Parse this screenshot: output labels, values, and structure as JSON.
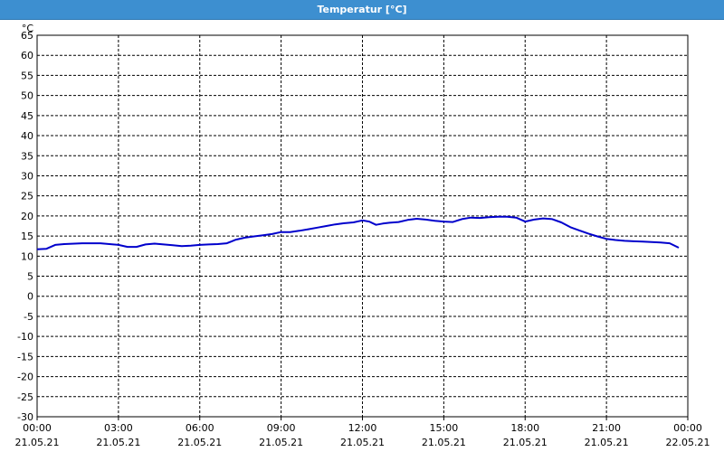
{
  "title": "Temperatur [°C]",
  "chart_data": {
    "type": "line",
    "title": "Temperatur [°C]",
    "y_unit_label": "°C",
    "ylim": [
      -30,
      65
    ],
    "yticks": [
      65,
      60,
      55,
      50,
      45,
      40,
      35,
      30,
      25,
      20,
      15,
      10,
      5,
      0,
      -5,
      -10,
      -15,
      -20,
      -25,
      -30
    ],
    "xlim_hours": [
      0,
      24
    ],
    "xticks": [
      {
        "time": "00:00",
        "date": "21.05.21"
      },
      {
        "time": "03:00",
        "date": "21.05.21"
      },
      {
        "time": "06:00",
        "date": "21.05.21"
      },
      {
        "time": "09:00",
        "date": "21.05.21"
      },
      {
        "time": "12:00",
        "date": "21.05.21"
      },
      {
        "time": "15:00",
        "date": "21.05.21"
      },
      {
        "time": "18:00",
        "date": "21.05.21"
      },
      {
        "time": "21:00",
        "date": "21.05.21"
      },
      {
        "time": "00:00",
        "date": "22.05.21"
      }
    ],
    "grid": true,
    "line_color": "#0000cc",
    "series": [
      {
        "x": [
          "21.05.21 00:00",
          "21.05.21 00:20",
          "21.05.21 00:40",
          "21.05.21 01:00",
          "21.05.21 01:40",
          "21.05.21 02:20",
          "21.05.21 03:00",
          "21.05.21 03:20",
          "21.05.21 03:40",
          "21.05.21 04:00",
          "21.05.21 04:20",
          "21.05.21 04:40",
          "21.05.21 05:00",
          "21.05.21 05:20",
          "21.05.21 05:40",
          "21.05.21 06:00",
          "21.05.21 06:20",
          "21.05.21 06:40",
          "21.05.21 07:00",
          "21.05.21 07:20",
          "21.05.21 07:40",
          "21.05.21 08:00",
          "21.05.21 08:20",
          "21.05.21 08:40",
          "21.05.21 09:00",
          "21.05.21 09:20",
          "21.05.21 09:40",
          "21.05.21 10:00",
          "21.05.21 10:20",
          "21.05.21 10:40",
          "21.05.21 11:00",
          "21.05.21 11:20",
          "21.05.21 11:40",
          "21.05.21 12:00",
          "21.05.21 12:15",
          "21.05.21 12:30",
          "21.05.21 12:45",
          "21.05.21 13:00",
          "21.05.21 13:20",
          "21.05.21 13:40",
          "21.05.21 14:00",
          "21.05.21 14:20",
          "21.05.21 14:40",
          "21.05.21 15:00",
          "21.05.21 15:20",
          "21.05.21 15:40",
          "21.05.21 16:00",
          "21.05.21 16:20",
          "21.05.21 16:40",
          "21.05.21 17:00",
          "21.05.21 17:20",
          "21.05.21 17:40",
          "21.05.21 18:00",
          "21.05.21 18:20",
          "21.05.21 18:40",
          "21.05.21 19:00",
          "21.05.21 19:20",
          "21.05.21 19:40",
          "21.05.21 20:00",
          "21.05.21 20:20",
          "21.05.21 20:40",
          "21.05.21 21:00",
          "21.05.21 21:20",
          "21.05.21 21:40",
          "21.05.21 22:00",
          "21.05.21 22:20",
          "21.05.21 22:40",
          "21.05.21 23:00",
          "21.05.21 23:20",
          "21.05.21 23:40"
        ],
        "y": [
          11.7,
          11.8,
          12.8,
          13.0,
          13.2,
          13.2,
          12.8,
          12.3,
          12.3,
          12.9,
          13.1,
          12.9,
          12.7,
          12.5,
          12.6,
          12.8,
          12.9,
          13.0,
          13.2,
          14.1,
          14.6,
          14.9,
          15.2,
          15.5,
          16.0,
          16.0,
          16.3,
          16.7,
          17.1,
          17.5,
          17.9,
          18.2,
          18.4,
          18.9,
          18.6,
          17.8,
          18.1,
          18.3,
          18.5,
          19.0,
          19.3,
          19.1,
          18.8,
          18.6,
          18.5,
          19.2,
          19.6,
          19.5,
          19.7,
          19.8,
          19.8,
          19.6,
          18.6,
          19.1,
          19.4,
          19.2,
          18.4,
          17.2,
          16.4,
          15.6,
          14.9,
          14.3,
          14.0,
          13.8,
          13.7,
          13.6,
          13.5,
          13.4,
          13.2,
          12.1
        ]
      }
    ]
  }
}
